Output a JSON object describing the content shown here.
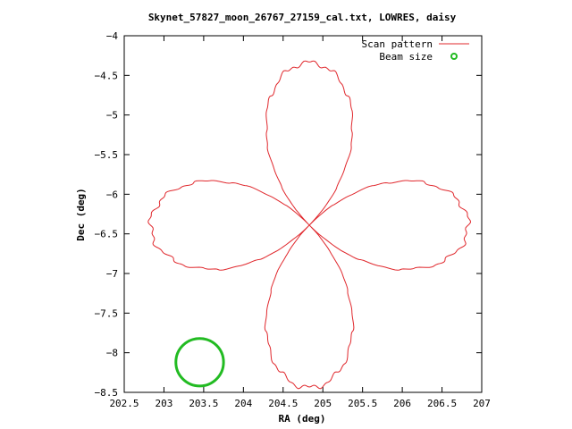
{
  "chart_data": {
    "type": "line",
    "title": "Skynet_57827_moon_26767_27159_cal.txt, LOWRES, daisy",
    "xlabel": "RA (deg)",
    "ylabel": "Dec (deg)",
    "xlim": [
      202.5,
      207
    ],
    "ylim": [
      -8.5,
      -4
    ],
    "xticks": [
      "202.5",
      "203",
      "203.5",
      "204",
      "204.5",
      "205",
      "205.5",
      "206",
      "206.5",
      "207"
    ],
    "yticks": [
      "-4",
      "-4.5",
      "-5",
      "-5.5",
      "-6",
      "-6.5",
      "-7",
      "-7.5",
      "-8",
      "-8.5"
    ],
    "legend_position": "top-right",
    "grid": false,
    "series": [
      {
        "name": "Scan pattern",
        "color": "#e0282d",
        "pattern": "daisy",
        "center": [
          204.83,
          -6.39
        ],
        "radius_x": 2.0,
        "radius_y": 2.05,
        "petals": 4
      },
      {
        "name": "Beam size",
        "color": "#22bb22",
        "shape": "circle",
        "center": [
          203.45,
          -8.12
        ],
        "radius": 0.3
      }
    ]
  }
}
